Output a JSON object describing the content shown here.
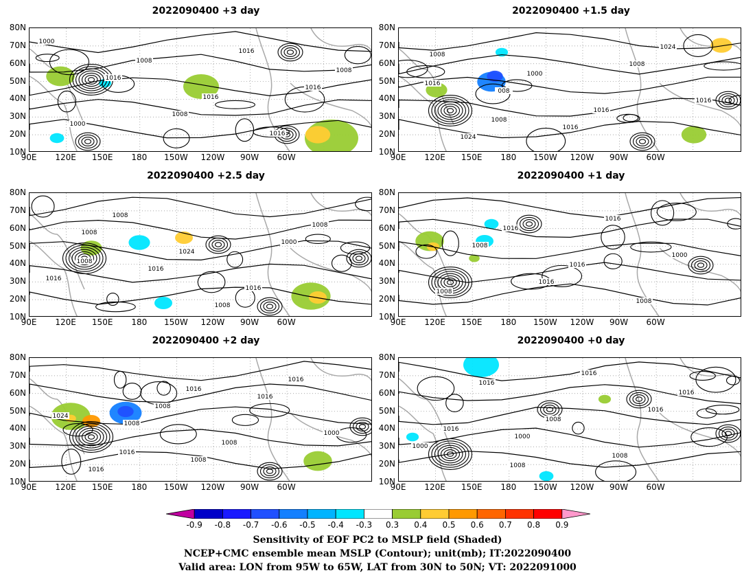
{
  "panels": [
    {
      "id": "p1",
      "title": "2022090400  +3 day",
      "contour_labels": [
        "1000",
        "1016",
        "1008",
        "1016",
        "1016",
        "1000",
        "1008",
        "1016",
        "1016",
        "1008"
      ]
    },
    {
      "id": "p2",
      "title": "2022090400  +1.5 day",
      "contour_labels": [
        "1008",
        "008",
        "1016",
        "1008",
        "1016",
        "1024",
        "1000",
        "1016",
        "1024",
        "1016",
        "1008"
      ]
    },
    {
      "id": "p3",
      "title": "2022090400  +2.5 day",
      "contour_labels": [
        "1008",
        "1016",
        "1008",
        "1000",
        "1016",
        "1008",
        "1024",
        "1016",
        "1008",
        "1008"
      ]
    },
    {
      "id": "p4",
      "title": "2022090400  +1 day",
      "contour_labels": [
        "1008",
        "1016",
        "1016",
        "1000",
        "1008",
        "1016",
        "1016",
        "1008"
      ]
    },
    {
      "id": "p5",
      "title": "2022090400  +2 day",
      "contour_labels": [
        "1008",
        "1008",
        "1016",
        "1000",
        "1016",
        "1008",
        "1008",
        "1016",
        "1024",
        "1016",
        "1016"
      ]
    },
    {
      "id": "p6",
      "title": "2022090400  +0 day",
      "contour_labels": [
        "1000",
        "1016",
        "1016",
        "1000",
        "1016",
        "1008",
        "1008",
        "1016",
        "1016",
        "1008"
      ]
    }
  ],
  "axes": {
    "lat_ticks": [
      "80N",
      "70N",
      "60N",
      "50N",
      "40N",
      "30N",
      "20N",
      "10N"
    ],
    "lon_ticks": [
      "90E",
      "120E",
      "150E",
      "180",
      "150W",
      "120W",
      "90W",
      "60W"
    ]
  },
  "colorbar": {
    "levels": [
      "-0.9",
      "-0.8",
      "-0.7",
      "-0.6",
      "-0.5",
      "-0.4",
      "-0.3",
      "0.3",
      "0.4",
      "0.5",
      "0.6",
      "0.7",
      "0.8",
      "0.9"
    ],
    "colors": [
      "#c000a0",
      "#0000c8",
      "#1a1aff",
      "#2050ff",
      "#1480ff",
      "#00b4ff",
      "#00e6ff",
      "#ffffff",
      "#99cc33",
      "#ffcc33",
      "#ff9900",
      "#ff6600",
      "#ff3300",
      "#ff0000",
      "#ff99cc"
    ]
  },
  "caption": {
    "line1": "Sensitivity of EOF PC2 to MSLP field (Shaded)",
    "line2": "NCEP+CMC ensemble mean MSLP (Contour); unit(mb); IT:2022090400",
    "line3": "Valid area: LON from 95W to 65W, LAT from 30N to 50N; VT: 2022091000"
  }
}
